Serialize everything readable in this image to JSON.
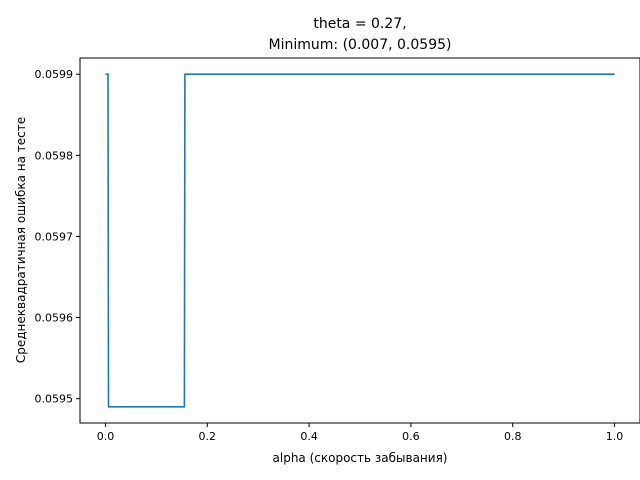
{
  "chart_data": {
    "type": "line",
    "title": "theta = 0.27,",
    "subtitle": "Minimum: (0.007, 0.0595)",
    "xlabel": "alpha (скорость забывания)",
    "ylabel": "Среднеквадратичная ошибка на тесте",
    "xlim": [
      -0.05,
      1.05
    ],
    "ylim": [
      0.05947,
      0.05992
    ],
    "x_ticks": [
      0.0,
      0.2,
      0.4,
      0.6,
      0.8,
      1.0
    ],
    "x_tick_labels": [
      "0.0",
      "0.2",
      "0.4",
      "0.6",
      "0.8",
      "1.0"
    ],
    "y_ticks": [
      0.0595,
      0.0596,
      0.0597,
      0.0598,
      0.0599
    ],
    "y_tick_labels": [
      "0.0595",
      "0.0596",
      "0.0597",
      "0.0598",
      "0.0599"
    ],
    "grid": false,
    "line_color": "#1f77b4",
    "series": [
      {
        "x": [
          0.0,
          0.005,
          0.006,
          0.155,
          0.156,
          0.995,
          1.0
        ],
        "values": [
          0.0599,
          0.0599,
          0.05949,
          0.05949,
          0.0599,
          0.0599,
          0.0599
        ]
      }
    ]
  }
}
